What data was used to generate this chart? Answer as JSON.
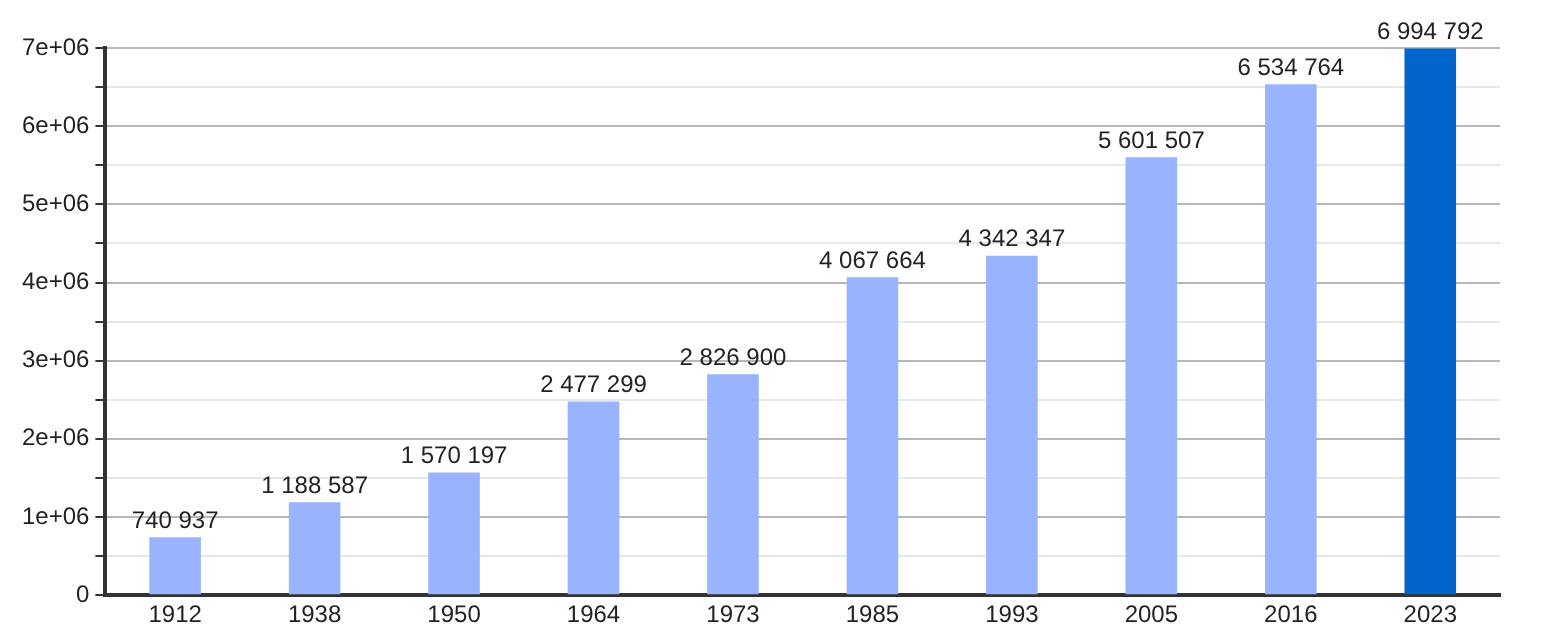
{
  "chart_data": {
    "type": "bar",
    "categories": [
      "1912",
      "1938",
      "1950",
      "1964",
      "1973",
      "1985",
      "1993",
      "2005",
      "2016",
      "2023"
    ],
    "values": [
      740937,
      1188587,
      1570197,
      2477299,
      2826900,
      4067664,
      4342347,
      5601507,
      6534764,
      6994792
    ],
    "value_labels": [
      "740 937",
      "1 188 587",
      "1 570 197",
      "2 477 299",
      "2 826 900",
      "4 067 664",
      "4 342 347",
      "5 601 507",
      "6 534 764",
      "6 994 792"
    ],
    "colors": [
      "#99b3ff",
      "#99b3ff",
      "#99b3ff",
      "#99b3ff",
      "#99b3ff",
      "#99b3ff",
      "#99b3ff",
      "#99b3ff",
      "#99b3ff",
      "#0066cc"
    ],
    "ylim": [
      0,
      7000000
    ],
    "yticks": [
      0,
      {
        "value": 500000,
        "label": null
      },
      {
        "value": 1000000,
        "label": "1e+06"
      },
      {
        "value": 1500000,
        "label": null
      },
      {
        "value": 2000000,
        "label": "2e+06"
      },
      {
        "value": 2500000,
        "label": null
      },
      {
        "value": 3000000,
        "label": "3e+06"
      },
      {
        "value": 3500000,
        "label": null
      },
      {
        "value": 4000000,
        "label": "4e+06"
      },
      {
        "value": 4500000,
        "label": null
      },
      {
        "value": 5000000,
        "label": "5e+06"
      },
      {
        "value": 5500000,
        "label": null
      },
      {
        "value": 6000000,
        "label": "6e+06"
      },
      {
        "value": 6500000,
        "label": null
      },
      {
        "value": 7000000,
        "label": "7e+06"
      }
    ],
    "grid": "y",
    "legend": false
  }
}
